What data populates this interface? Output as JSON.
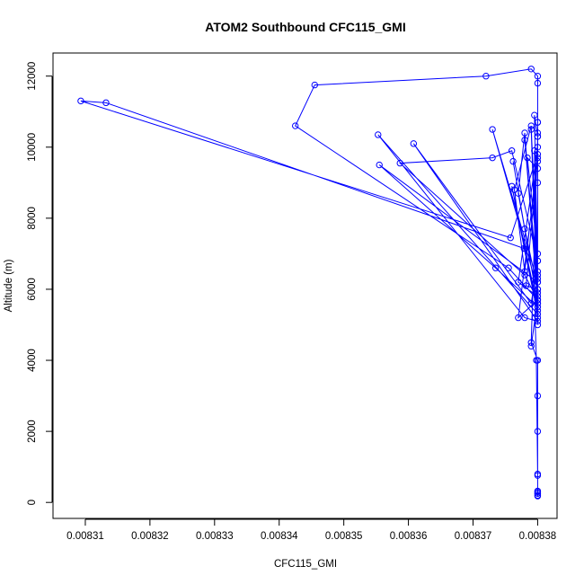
{
  "chart_data": {
    "type": "line",
    "title": "ATOM2 Southbound CFC115_GMI",
    "xlabel": "CFC115_GMI",
    "ylabel": "Altitude (m)",
    "xlim": [
      0.008305,
      0.008383
    ],
    "ylim": [
      -450,
      12650
    ],
    "x_ticks": [
      0.00831,
      0.00832,
      0.00833,
      0.00834,
      0.00835,
      0.00836,
      0.00837,
      0.00838
    ],
    "x_tick_labels": [
      "0.00831",
      "0.00832",
      "0.00833",
      "0.00834",
      "0.00835",
      "0.00836",
      "0.00837",
      "0.00838"
    ],
    "y_ticks": [
      0,
      2000,
      4000,
      6000,
      8000,
      10000,
      12000
    ],
    "y_tick_labels": [
      "0",
      "2000",
      "4000",
      "6000",
      "8000",
      "10000",
      "12000"
    ],
    "grid": false,
    "color": "#0000ff",
    "series": [
      {
        "marker": "open-circle",
        "points": [
          [
            0.00838,
            200
          ],
          [
            0.00838,
            260
          ],
          [
            0.00838,
            320
          ],
          [
            0.00838,
            250
          ],
          [
            0.00838,
            760
          ],
          [
            0.0083798,
            4000
          ],
          [
            0.0083796,
            5200
          ],
          [
            0.008379,
            4400
          ],
          [
            0.00838,
            5700
          ],
          [
            0.008377,
            5200
          ],
          [
            0.00838,
            9600
          ],
          [
            0.00838,
            10400
          ],
          [
            0.00838,
            6400
          ],
          [
            0.00838,
            11800
          ],
          [
            0.00838,
            12000
          ],
          [
            0.008379,
            12200
          ],
          [
            0.008372,
            12000
          ],
          [
            0.0083455,
            11750
          ],
          [
            0.0083425,
            10600
          ],
          [
            0.0083755,
            6600
          ],
          [
            0.00838,
            5700
          ],
          [
            0.00838,
            10300
          ],
          [
            0.0083795,
            10900
          ],
          [
            0.00838,
            6500
          ],
          [
            0.00838,
            10700
          ],
          [
            0.00838,
            7000
          ],
          [
            0.0083784,
            9700
          ],
          [
            0.00838,
            9400
          ],
          [
            0.00838,
            6300
          ],
          [
            0.0083795,
            9900
          ],
          [
            0.00838,
            5200
          ],
          [
            0.008379,
            10500
          ],
          [
            0.00838,
            6800
          ],
          [
            0.008376,
            9900
          ],
          [
            0.008373,
            9700
          ],
          [
            0.0083587,
            9550
          ],
          [
            0.008378,
            6400
          ],
          [
            0.00838,
            5700
          ],
          [
            0.00838,
            10000
          ],
          [
            0.008377,
            6200
          ],
          [
            0.00838,
            5800
          ],
          [
            0.008378,
            10200
          ],
          [
            0.00838,
            6200
          ],
          [
            0.008373,
            10500
          ],
          [
            0.00838,
            6000
          ],
          [
            0.008378,
            7700
          ],
          [
            0.008377,
            8700
          ],
          [
            0.008378,
            10400
          ],
          [
            0.00838,
            5600
          ],
          [
            0.0083762,
            9600
          ],
          [
            0.00838,
            5600
          ],
          [
            0.00838,
            9000
          ],
          [
            0.00838,
            6200
          ],
          [
            0.0083555,
            9500
          ],
          [
            0.0083735,
            6600
          ],
          [
            0.00838,
            5500
          ],
          [
            0.008376,
            8900
          ],
          [
            0.00838,
            5300
          ],
          [
            0.0083553,
            10350
          ],
          [
            0.008378,
            5200
          ],
          [
            0.00838,
            5100
          ],
          [
            0.0083608,
            10100
          ],
          [
            0.008379,
            5600
          ],
          [
            0.00838,
            6800
          ],
          [
            0.00838,
            6000
          ],
          [
            0.0083782,
            6100
          ],
          [
            0.00838,
            9700
          ],
          [
            0.00838,
            5900
          ],
          [
            0.008379,
            10600
          ],
          [
            0.0083764,
            8800
          ],
          [
            0.008378,
            6500
          ],
          [
            0.00838,
            9800
          ],
          [
            0.0083758,
            7450
          ],
          [
            0.0083093,
            11300
          ],
          [
            0.0083132,
            11250
          ],
          [
            0.0083779,
            7150
          ],
          [
            0.00838,
            5400
          ],
          [
            0.00838,
            10700
          ],
          [
            0.00838,
            5000
          ],
          [
            0.00838,
            10300
          ],
          [
            0.008379,
            4500
          ],
          [
            0.00838,
            4000
          ],
          [
            0.00838,
            3000
          ],
          [
            0.00838,
            2000
          ],
          [
            0.00838,
            800
          ],
          [
            0.00838,
            300
          ],
          [
            0.00838,
            180
          ]
        ]
      }
    ]
  }
}
